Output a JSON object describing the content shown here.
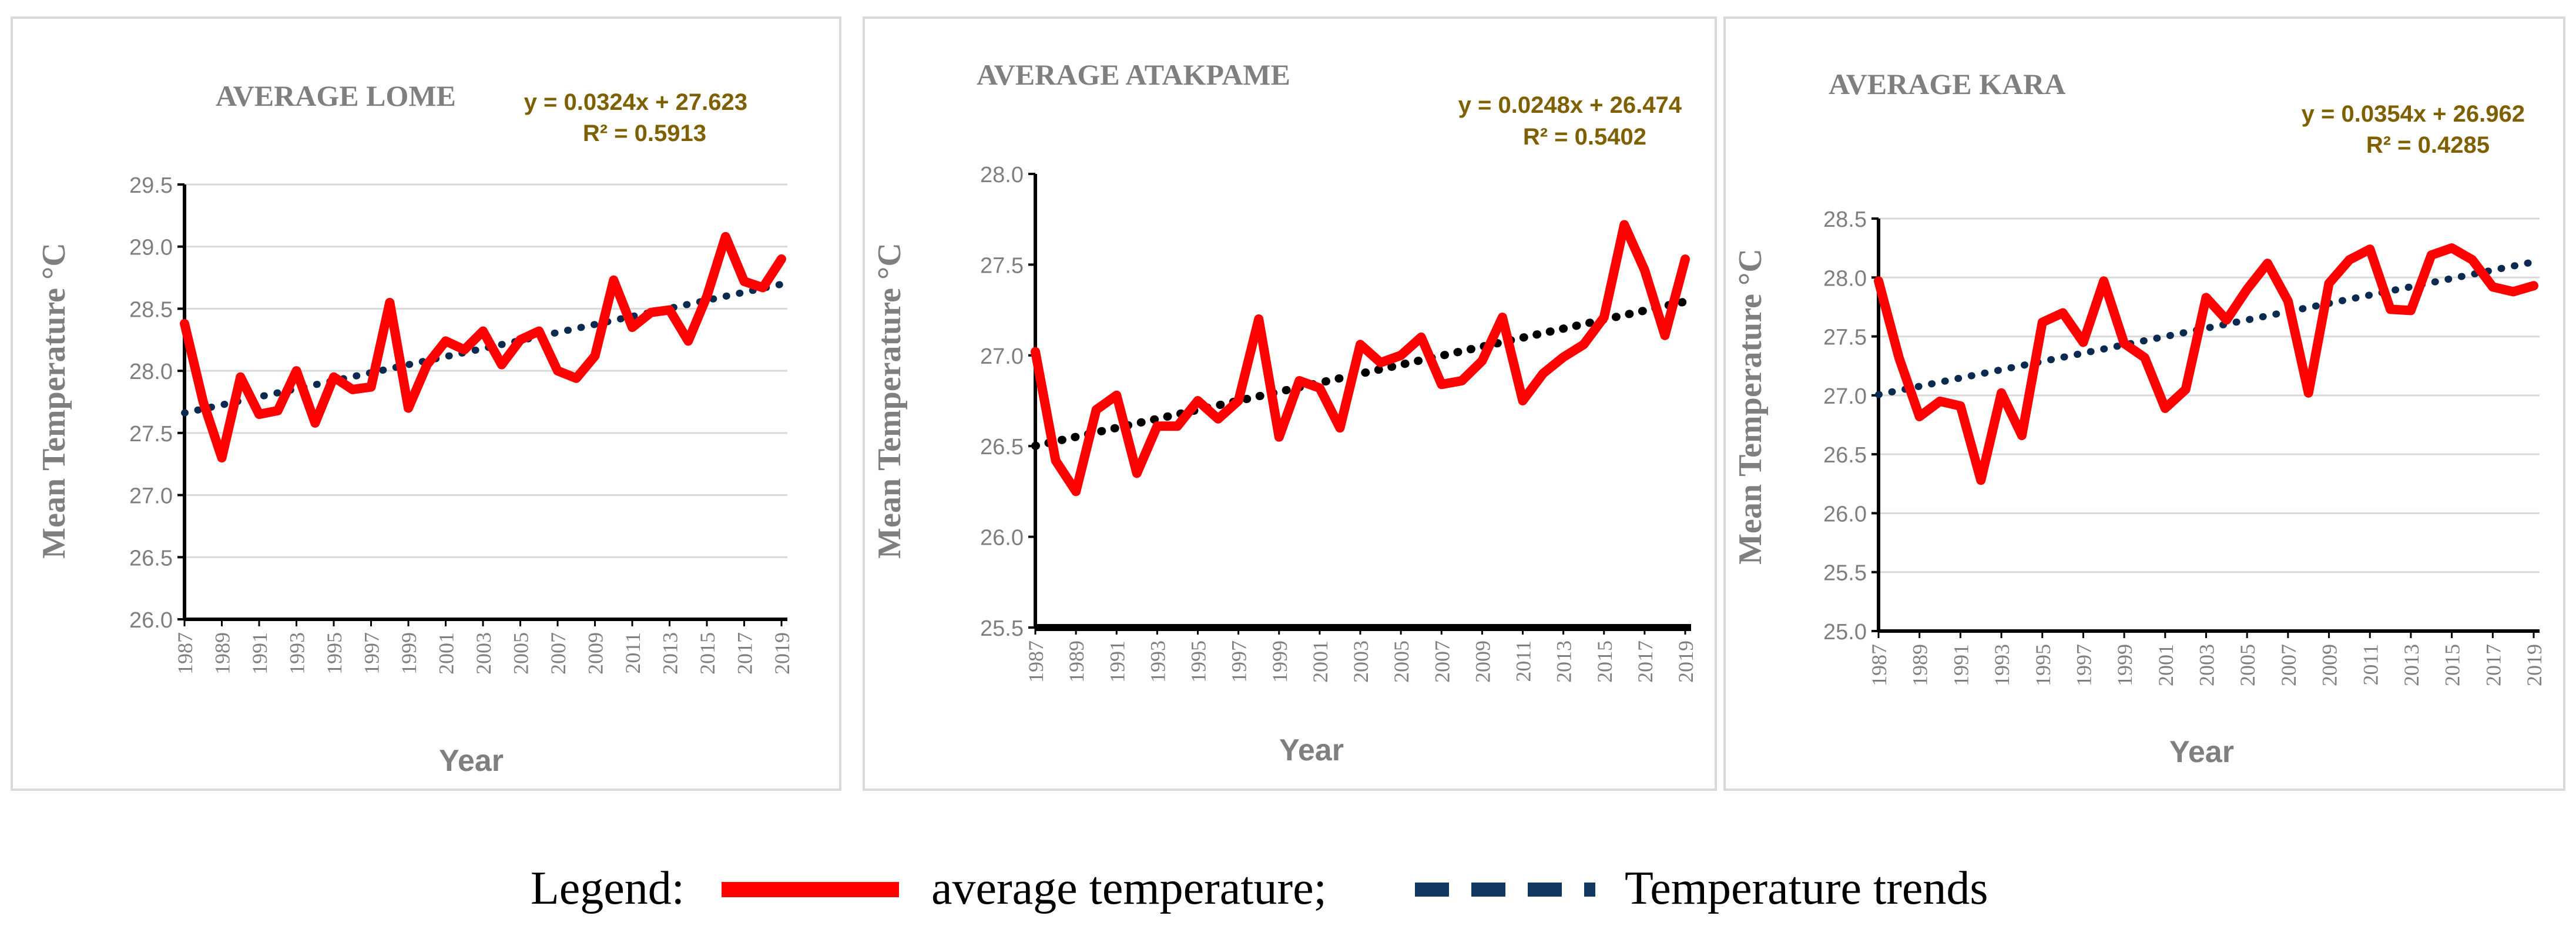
{
  "colors": {
    "temperature": "#ff0000",
    "trend_dots": "#0b2a50",
    "trend_dots_atakpame": "#000000",
    "trend_legend": "#12385f",
    "equation": "#7f6000",
    "text_gray": "#7f7f7f",
    "grid": "#d9d9d9",
    "panel_border": "#d9d9d9"
  },
  "legend": {
    "prefix": "Legend:",
    "temperature_label": "average temperature;",
    "trend_label": "Temperature trends"
  },
  "chart_data": [
    {
      "type": "line",
      "title": "AVERAGE LOME",
      "xlabel": "Year",
      "ylabel": "Mean Temperature  °C",
      "ylim": [
        26.0,
        29.5
      ],
      "yticks": [
        "26.0",
        "26.5",
        "27.0",
        "27.5",
        "28.0",
        "28.5",
        "29.0",
        "29.5"
      ],
      "grid": true,
      "x": [
        1987,
        1988,
        1989,
        1990,
        1991,
        1992,
        1993,
        1994,
        1995,
        1996,
        1997,
        1998,
        1999,
        2000,
        2001,
        2002,
        2003,
        2004,
        2005,
        2006,
        2007,
        2008,
        2009,
        2010,
        2011,
        2012,
        2013,
        2014,
        2015,
        2016,
        2017,
        2018,
        2019
      ],
      "x_tick_labels": [
        "1987",
        "1989",
        "1991",
        "1993",
        "1995",
        "1997",
        "1999",
        "2001",
        "2003",
        "2005",
        "2007",
        "2009",
        "2011",
        "2013",
        "2015",
        "2017",
        "2019"
      ],
      "series": [
        {
          "values": [
            28.38,
            27.75,
            27.3,
            27.95,
            27.65,
            27.68,
            28.0,
            27.58,
            27.95,
            27.85,
            27.87,
            28.55,
            27.7,
            28.05,
            28.24,
            28.17,
            28.32,
            28.05,
            28.25,
            28.32,
            28.0,
            27.94,
            28.12,
            28.73,
            28.35,
            28.47,
            28.49,
            28.24,
            28.6,
            29.08,
            28.72,
            28.67,
            28.9
          ]
        }
      ],
      "trendline": {
        "equation": "y = 0.0324x + 27.623",
        "r2": "R² = 0.5913"
      }
    },
    {
      "type": "line",
      "title": "AVERAGE ATAKPAME",
      "xlabel": "Year",
      "ylabel": "Mean Temperature  °C",
      "ylim": [
        25.5,
        28.0
      ],
      "yticks": [
        "25.5",
        "26.0",
        "26.5",
        "27.0",
        "27.5",
        "28.0"
      ],
      "grid": false,
      "x": [
        1987,
        1988,
        1989,
        1990,
        1991,
        1992,
        1993,
        1994,
        1995,
        1996,
        1997,
        1998,
        1999,
        2000,
        2001,
        2002,
        2003,
        2004,
        2005,
        2006,
        2007,
        2008,
        2009,
        2010,
        2011,
        2012,
        2013,
        2014,
        2015,
        2016,
        2017,
        2018,
        2019
      ],
      "x_tick_labels": [
        "1987",
        "1989",
        "1991",
        "1993",
        "1995",
        "1997",
        "1999",
        "2001",
        "2003",
        "2005",
        "2007",
        "2009",
        "2011",
        "2013",
        "2015",
        "2017",
        "2019"
      ],
      "series": [
        {
          "values": [
            27.02,
            26.42,
            26.25,
            26.7,
            26.78,
            26.35,
            26.61,
            26.61,
            26.75,
            26.65,
            26.75,
            27.2,
            26.55,
            26.86,
            26.82,
            26.6,
            27.06,
            26.96,
            27.0,
            27.1,
            26.84,
            26.86,
            26.97,
            27.21,
            26.75,
            26.9,
            26.99,
            27.06,
            27.21,
            27.72,
            27.47,
            27.11,
            27.53
          ]
        }
      ],
      "trendline": {
        "equation": "y = 0.0248x + 26.474",
        "r2": "R² = 0.5402"
      }
    },
    {
      "type": "line",
      "title": "AVERAGE KARA",
      "xlabel": "Year",
      "ylabel": "Mean Temperature  °C",
      "ylim": [
        25.0,
        28.5
      ],
      "yticks": [
        "25.0",
        "25.5",
        "26.0",
        "26.5",
        "27.0",
        "27.5",
        "28.0",
        "28.5"
      ],
      "grid": true,
      "x": [
        1987,
        1988,
        1989,
        1990,
        1991,
        1992,
        1993,
        1994,
        1995,
        1996,
        1997,
        1998,
        1999,
        2000,
        2001,
        2002,
        2003,
        2004,
        2005,
        2006,
        2007,
        2008,
        2009,
        2010,
        2011,
        2012,
        2013,
        2014,
        2015,
        2016,
        2017,
        2018,
        2019
      ],
      "x_tick_labels": [
        "1987",
        "1989",
        "1991",
        "1993",
        "1995",
        "1997",
        "1999",
        "2001",
        "2003",
        "2005",
        "2007",
        "2009",
        "2011",
        "2013",
        "2015",
        "2017",
        "2019"
      ],
      "series": [
        {
          "values": [
            27.97,
            27.32,
            26.82,
            26.95,
            26.91,
            26.28,
            27.02,
            26.66,
            27.62,
            27.7,
            27.45,
            27.97,
            27.44,
            27.32,
            26.89,
            27.05,
            27.83,
            27.64,
            27.9,
            28.12,
            27.8,
            27.02,
            27.95,
            28.15,
            28.24,
            27.73,
            27.72,
            28.19,
            28.25,
            28.15,
            27.92,
            27.88,
            27.93
          ]
        }
      ],
      "trendline": {
        "equation": "y = 0.0354x + 26.962",
        "r2": "R² = 0.4285"
      }
    }
  ]
}
